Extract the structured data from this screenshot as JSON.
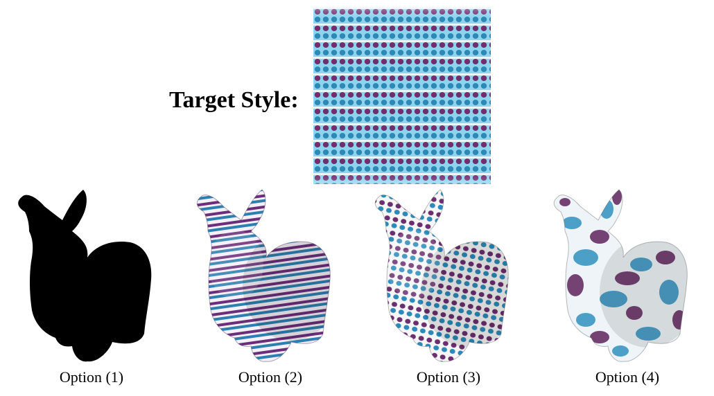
{
  "target": {
    "label": "Target Style:",
    "colors": [
      "#8cd6f0",
      "#2d8db8",
      "#6e3270",
      "#f4f8fb"
    ]
  },
  "options": [
    {
      "label": "Option (1)",
      "style": "silhouette",
      "color": "#000000"
    },
    {
      "label": "Option (2)",
      "style": "horizontal-stripes",
      "colors": [
        "#f6f2fa",
        "#2a7fb0",
        "#6a2f78"
      ]
    },
    {
      "label": "Option (3)",
      "style": "dotted-stripes",
      "colors": [
        "#f7f7f7",
        "#2a8ab8",
        "#6b2f6e"
      ]
    },
    {
      "label": "Option (4)",
      "style": "camouflage",
      "colors": [
        "#f2f6f8",
        "#3a9ac4",
        "#6a3468"
      ]
    }
  ]
}
